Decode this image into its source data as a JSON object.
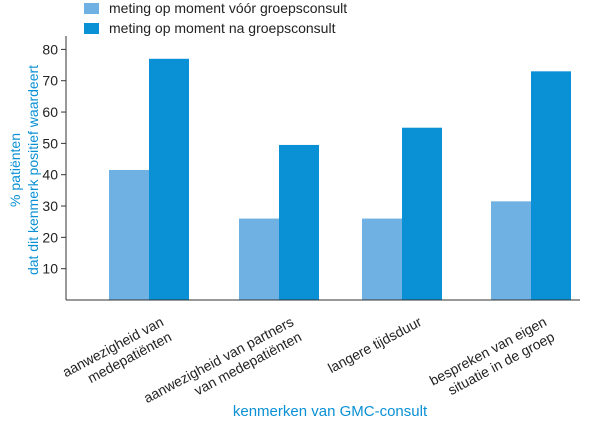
{
  "chart_data": {
    "type": "bar",
    "legend_placement": "top-left",
    "grid": false,
    "categories": [
      [
        "aanwezigheid van",
        "medepatiënten"
      ],
      [
        "aanwezigheid van partners",
        "van medepatiënten"
      ],
      [
        "langere tijdsduur"
      ],
      [
        "bespreken van eigen",
        "situatie in de groep"
      ]
    ],
    "series": [
      {
        "name": "meting op moment vóór groepsconsult",
        "color": "#6fb1e3",
        "values": [
          41.5,
          26,
          26,
          31.5
        ]
      },
      {
        "name": "meting op moment na groepsconsult",
        "color": "#0a90d4",
        "values": [
          77,
          49.5,
          55,
          73
        ]
      }
    ],
    "ylabel": [
      "% patiënten",
      "dat dit kenmerk positief waardeert"
    ],
    "xlabel": "kenmerken van GMC-consult",
    "ylim": [
      0,
      83
    ],
    "yticks": [
      10,
      20,
      30,
      40,
      50,
      60,
      70,
      80
    ],
    "axis_label_color": "#0a90d4",
    "text_color": "#222222"
  }
}
